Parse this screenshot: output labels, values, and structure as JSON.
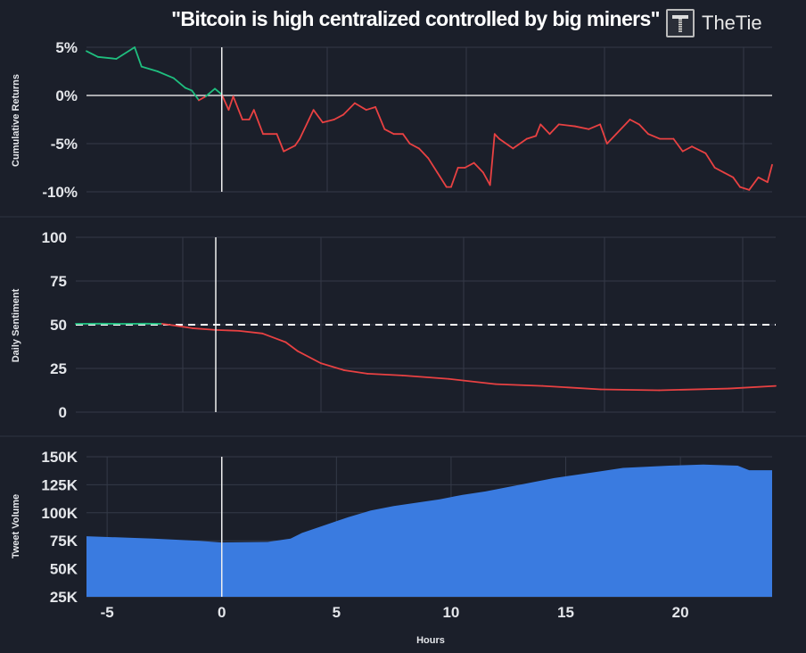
{
  "title": "\"Bitcoin is high centralized controlled by big miners\"",
  "logo": {
    "text": "TheTie"
  },
  "colors": {
    "background": "#1b1f2a",
    "grid": "#343a48",
    "positive": "#1fbf7f",
    "negative": "#e84142",
    "volume": "#3a7be0"
  },
  "chart_data": [
    {
      "type": "line",
      "ylabel": "Cumulative Returns",
      "ylim": [
        -10,
        5
      ],
      "yticks": [
        "5%",
        "0%",
        "-5%",
        "-10%"
      ],
      "ytick_values": [
        5,
        0,
        -5,
        -10
      ],
      "xlim": [
        -5.9,
        24
      ],
      "grid": true,
      "x": [
        -5.9,
        -5.4,
        -4.6,
        -3.8,
        -3.5,
        -2.8,
        -2.1,
        -1.6,
        -1.3,
        -1.0,
        -0.7,
        -0.3,
        0,
        0.3,
        0.5,
        0.9,
        1.2,
        1.4,
        1.8,
        2.4,
        2.7,
        3.2,
        3.4,
        3.8,
        4.0,
        4.4,
        4.9,
        5.3,
        5.8,
        6.3,
        6.7,
        7.1,
        7.5,
        7.9,
        8.2,
        8.6,
        9.0,
        9.4,
        9.8,
        10.0,
        10.3,
        10.6,
        11.0,
        11.4,
        11.7,
        11.9,
        12.1,
        12.7,
        13.3,
        13.7,
        13.9,
        14.3,
        14.7,
        15.4,
        16.0,
        16.5,
        16.8,
        17.2,
        17.8,
        18.2,
        18.6,
        19.1,
        19.7,
        20.1,
        20.5,
        21.1,
        21.5,
        21.9,
        22.3,
        22.6,
        23.0,
        23.4,
        23.8,
        24.0
      ],
      "y": [
        4.6,
        4.0,
        3.8,
        5.0,
        3.0,
        2.5,
        1.8,
        0.8,
        0.5,
        -0.5,
        -0.1,
        0.7,
        0.1,
        -1.5,
        -0.1,
        -2.5,
        -2.5,
        -1.5,
        -4.0,
        -4.0,
        -5.8,
        -5.2,
        -4.5,
        -2.5,
        -1.5,
        -2.8,
        -2.5,
        -2.0,
        -0.8,
        -1.5,
        -1.2,
        -3.5,
        -4.0,
        -4.0,
        -5.0,
        -5.5,
        -6.5,
        -8.0,
        -9.5,
        -9.5,
        -7.5,
        -7.5,
        -7.0,
        -8.0,
        -9.3,
        -4.0,
        -4.5,
        -5.5,
        -4.5,
        -4.2,
        -3.0,
        -4.0,
        -3.0,
        -3.2,
        -3.5,
        -3.0,
        -5.0,
        -4.0,
        -2.5,
        -3.0,
        -4.0,
        -4.5,
        -4.5,
        -5.8,
        -5.3,
        -6.0,
        -7.5,
        -8.0,
        -8.5,
        -9.5,
        -9.8,
        -8.5,
        -9.0,
        -7.2
      ],
      "reference_lines": {
        "horizontal": 0,
        "vertical": 0
      }
    },
    {
      "type": "line",
      "ylabel": "Daily Sentiment",
      "ylim": [
        0,
        100
      ],
      "yticks": [
        "100",
        "75",
        "50",
        "25",
        "0"
      ],
      "ytick_values": [
        100,
        75,
        50,
        25,
        0
      ],
      "xlim": [
        -6,
        24
      ],
      "grid": true,
      "x": [
        -6,
        -5,
        -4,
        -3,
        -2.3,
        -2,
        -1,
        0,
        1,
        2,
        3,
        3.5,
        4.5,
        5.5,
        6.5,
        8,
        10,
        12,
        14,
        16.5,
        19,
        22,
        24
      ],
      "y": [
        50.5,
        50.6,
        50.5,
        50.6,
        50.5,
        50,
        48,
        47,
        46.5,
        45,
        40,
        35,
        28,
        24,
        22,
        21,
        19,
        16,
        15,
        13,
        12.5,
        13.5,
        15
      ],
      "positive_until": -2.3,
      "reference_lines": {
        "horizontal_dashed": 50,
        "vertical": 0
      }
    },
    {
      "type": "area",
      "ylabel": "Tweet Volume",
      "xlabel": "Hours",
      "ylim": [
        25000,
        150000
      ],
      "yticks": [
        "150K",
        "125K",
        "100K",
        "75K",
        "50K",
        "25K"
      ],
      "ytick_values": [
        150000,
        125000,
        100000,
        75000,
        50000,
        25000
      ],
      "xlim": [
        -5.9,
        24
      ],
      "xticks": [
        "-5",
        "0",
        "5",
        "10",
        "15",
        "20"
      ],
      "xtick_values": [
        -5,
        0,
        5,
        10,
        15,
        20
      ],
      "grid": true,
      "x": [
        -5.9,
        -3,
        -1,
        0,
        2,
        3,
        3.5,
        4.5,
        5.5,
        6.5,
        7.5,
        8.5,
        9.5,
        10.5,
        11.5,
        12.5,
        13.5,
        14.5,
        15.5,
        16.5,
        17.5,
        18.5,
        19.5,
        21,
        22.5,
        23,
        24
      ],
      "y": [
        79000,
        77000,
        75000,
        73500,
        74000,
        77000,
        82000,
        89000,
        96000,
        102000,
        106000,
        109000,
        112000,
        116000,
        119000,
        123000,
        127000,
        131000,
        134000,
        137000,
        140000,
        141000,
        142000,
        143000,
        142000,
        138000,
        138000
      ],
      "reference_lines": {
        "vertical": 0
      }
    }
  ]
}
